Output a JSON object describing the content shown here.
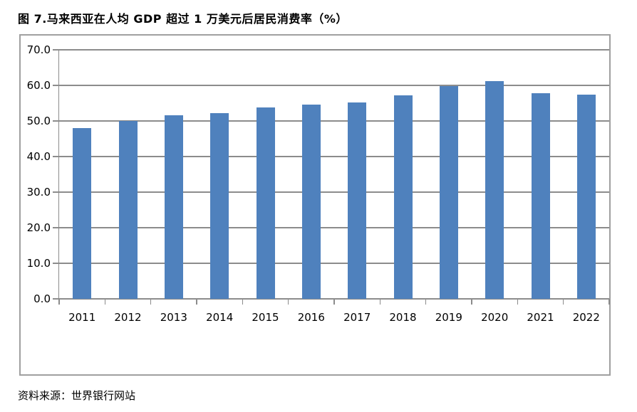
{
  "chart_data": {
    "type": "bar",
    "title": "图 7.马来西亚在人均 GDP 超过 1 万美元后居民消费率（%）",
    "categories": [
      "2011",
      "2012",
      "2013",
      "2014",
      "2015",
      "2016",
      "2017",
      "2018",
      "2019",
      "2020",
      "2021",
      "2022"
    ],
    "values": [
      48.0,
      50.0,
      51.7,
      52.2,
      53.9,
      54.7,
      55.3,
      57.3,
      59.8,
      61.2,
      57.8,
      57.5
    ],
    "xlabel": "",
    "ylabel": "",
    "ylim": [
      0,
      70
    ],
    "yticks": [
      0,
      10,
      20,
      30,
      40,
      50,
      60,
      70
    ],
    "ytick_labels": [
      "0.0",
      "10.0",
      "20.0",
      "30.0",
      "40.0",
      "50.0",
      "60.0",
      "70.0"
    ],
    "grid": true,
    "legend": false,
    "bar_color": "#4F81BD",
    "gridline_color": "#8C8C8C",
    "axis_color": "#8C8C8C",
    "frame_border_color": "#A0A0A0"
  },
  "footer": {
    "source_label": "资料来源：世界银行网站"
  }
}
